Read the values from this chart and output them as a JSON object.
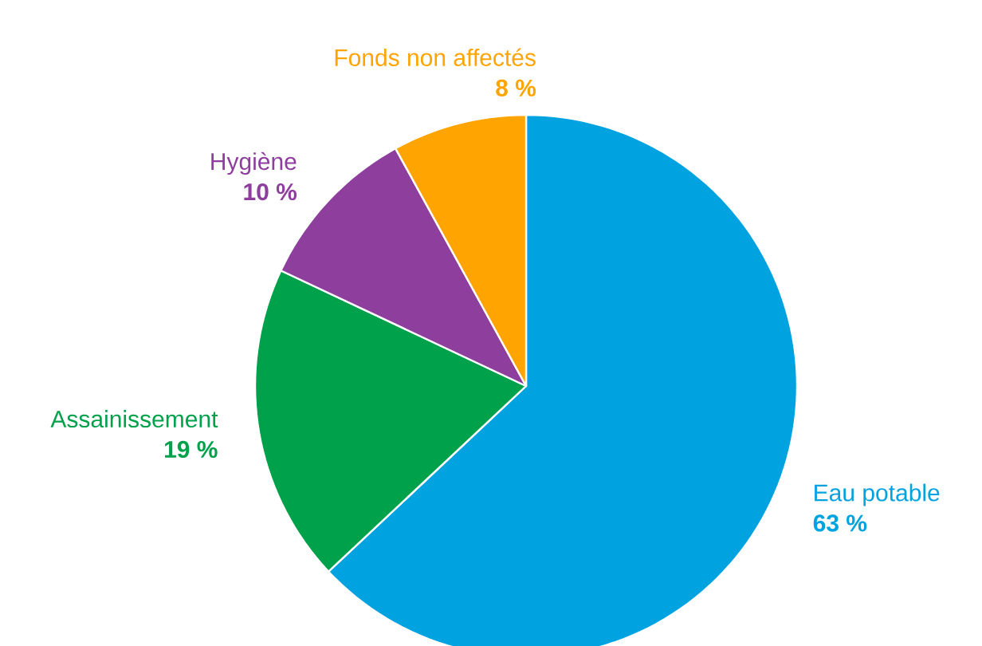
{
  "chart_data": {
    "type": "pie",
    "categories": [
      "Eau potable",
      "Assainissement",
      "Hygiène",
      "Fonds non affectés"
    ],
    "values": [
      63,
      19,
      10,
      8
    ],
    "value_labels": [
      "63 %",
      "19 %",
      "10 %",
      "8 %"
    ],
    "colors": [
      "#00a3e0",
      "#00a14b",
      "#8e3f9e",
      "#ffa400"
    ]
  }
}
